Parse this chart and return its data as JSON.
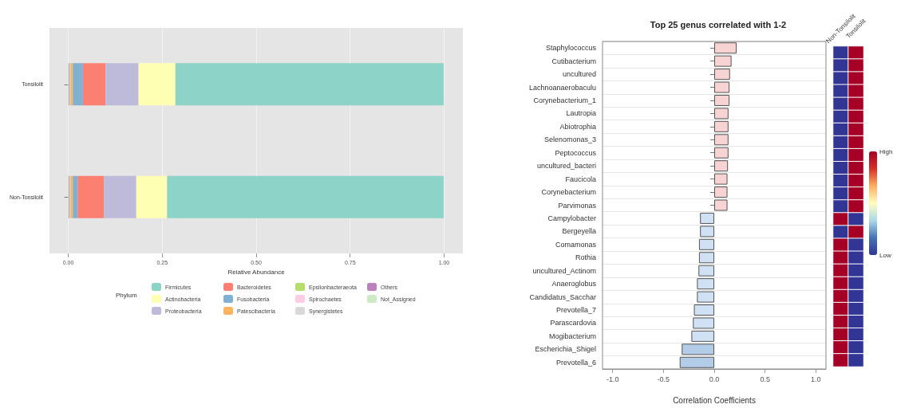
{
  "chart_data": [
    {
      "type": "bar",
      "orientation": "horizontal",
      "stacked": true,
      "categories": [
        "Tonsilolit",
        "Non-Tonsilolit"
      ],
      "xlabel": "Relative Abundance",
      "legend_title": "Phylum",
      "legend": "bottom",
      "grid": "x",
      "xlim": [
        -0.05,
        1.05
      ],
      "xticks": [
        {
          "value": 0,
          "label": "0.00"
        },
        {
          "value": 0.25,
          "label": "0.25"
        },
        {
          "value": 0.5,
          "label": "0.50"
        },
        {
          "value": 0.75,
          "label": "0.75"
        },
        {
          "value": 1,
          "label": "1.00"
        }
      ],
      "series": [
        {
          "name": "Not_Assigned",
          "color": "#ccebc5",
          "values": [
            0.001,
            0.001
          ]
        },
        {
          "name": "Others",
          "color": "#bc80bd",
          "values": [
            0.002,
            0.002
          ]
        },
        {
          "name": "Synergistetes",
          "color": "#d9d9d9",
          "values": [
            null,
            null
          ]
        },
        {
          "name": "Spirochaetes",
          "color": "#fccde5",
          "values": [
            0.002,
            0.002
          ]
        },
        {
          "name": "Epsilonbacteraeota",
          "color": "#b3de69",
          "values": [
            0.002,
            0.002
          ]
        },
        {
          "name": "Patescibacteria",
          "color": "#fdb462",
          "values": [
            0.005,
            0.005
          ]
        },
        {
          "name": "Fusobacteria",
          "color": "#80b1d3",
          "values": [
            0.027,
            0.013
          ]
        },
        {
          "name": "Bacteroidetes",
          "color": "#fb8072",
          "values": [
            0.06,
            0.07
          ]
        },
        {
          "name": "Proteobacteria",
          "color": "#bebada",
          "values": [
            0.088,
            0.086
          ]
        },
        {
          "name": "Actinobacteria",
          "color": "#ffffb3",
          "values": [
            0.098,
            0.082
          ]
        },
        {
          "name": "Firmicutes",
          "color": "#8dd3c7",
          "values": [
            0.714,
            0.736
          ]
        }
      ]
    },
    {
      "type": "bar",
      "orientation": "horizontal",
      "title": "Top 25 genus correlated with 1-2",
      "xlabel": "Correlation Coefficients",
      "grid": "y",
      "xlim": [
        -1.1,
        1.1
      ],
      "xticks": [
        {
          "value": -1,
          "label": "-1.0"
        },
        {
          "value": -0.5,
          "label": "-0.5"
        },
        {
          "value": 0,
          "label": "0.0"
        },
        {
          "value": 0.5,
          "label": "0.5"
        },
        {
          "value": 1,
          "label": "1.0"
        }
      ],
      "categories": [
        "Staphylococcus",
        "Cutibacterium",
        "uncultured",
        "Lachnoanaerobaculu",
        "Corynebacterium_1",
        "Lautropia",
        "Abiotrophia",
        "Selenomonas_3",
        "Peptococcus",
        "uncultured_bacteri",
        "Faucicola",
        "Corynebacterium",
        "Parvimonas",
        "Campylobacter",
        "Bergeyella",
        "Comamonas",
        "Rothia",
        "uncultured_Actinom",
        "Anaeroglobus",
        "Candidatus_Sacchar",
        "Prevotella_7",
        "Parascardovia",
        "Mogibacterium",
        "Escherichia_Shigel",
        "Prevotella_6"
      ],
      "values": [
        0.22,
        0.17,
        0.155,
        0.15,
        0.15,
        0.14,
        0.14,
        0.14,
        0.14,
        0.135,
        0.13,
        0.13,
        0.13,
        -0.14,
        -0.14,
        -0.15,
        -0.15,
        -0.155,
        -0.17,
        -0.17,
        -0.2,
        -0.21,
        -0.225,
        -0.32,
        -0.34
      ],
      "colors": [
        "#f7d3d3",
        "#f7d3d3",
        "#f7d3d3",
        "#f7d3d3",
        "#f7d3d3",
        "#f7d3d3",
        "#f7d3d3",
        "#f7d3d3",
        "#f7d3d3",
        "#f7d3d3",
        "#f7d3d3",
        "#f7d3d3",
        "#f7d3d3",
        "#cfe1f3",
        "#cfe1f3",
        "#cfe1f3",
        "#cfe1f3",
        "#cfe1f3",
        "#cfe1f3",
        "#cfe1f3",
        "#cfe1f3",
        "#cfe1f3",
        "#cfe1f3",
        "#b3cde8",
        "#b3cde8"
      ]
    },
    {
      "type": "heatmap",
      "categories": [
        "Non-Tonsilolit",
        "Tonsilolit"
      ],
      "y_categories": [
        null,
        null,
        null,
        null,
        null,
        null,
        null,
        null,
        null,
        null,
        null,
        null,
        null,
        null,
        null,
        null,
        null,
        null,
        null,
        null,
        null,
        null,
        null,
        null,
        null
      ],
      "tick_labels": "x",
      "clim": [
        0,
        1
      ],
      "cticks": [
        {
          "value": 0,
          "label": "Low"
        },
        {
          "value": 1,
          "label": "High"
        }
      ],
      "cells": [
        [
          0,
          1
        ],
        [
          0,
          1
        ],
        [
          0,
          1
        ],
        [
          0,
          1
        ],
        [
          0,
          1
        ],
        [
          0,
          1
        ],
        [
          0,
          1
        ],
        [
          0,
          1
        ],
        [
          0,
          1
        ],
        [
          0,
          1
        ],
        [
          0,
          1
        ],
        [
          0,
          1
        ],
        [
          0,
          1
        ],
        [
          1,
          0
        ],
        [
          0,
          1
        ],
        [
          1,
          0
        ],
        [
          1,
          0
        ],
        [
          1,
          0
        ],
        [
          1,
          0
        ],
        [
          1,
          0
        ],
        [
          1,
          0
        ],
        [
          1,
          0
        ],
        [
          1,
          0
        ],
        [
          1,
          0
        ],
        [
          1,
          0
        ]
      ]
    }
  ]
}
